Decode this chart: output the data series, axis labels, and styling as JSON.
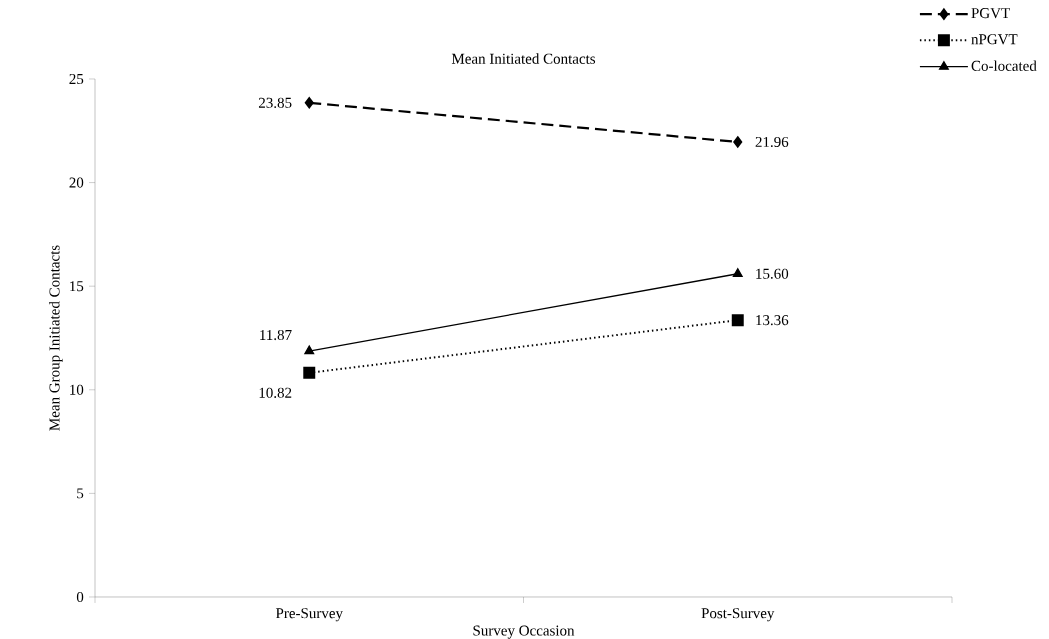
{
  "chart_data": {
    "type": "line",
    "title": "Mean Initiated Contacts",
    "xlabel": "Survey Occasion",
    "ylabel": "Mean Group Initiated Contacts",
    "categories": [
      "Pre-Survey",
      "Post-Survey"
    ],
    "series": [
      {
        "name": "PGVT",
        "color": "#000000",
        "values": [
          23.85,
          21.96
        ],
        "value_labels": [
          "23.85",
          "21.96"
        ],
        "line_style": "dashed",
        "marker": "diamond"
      },
      {
        "name": "nPGVT",
        "color": "#000000",
        "values": [
          10.82,
          13.36
        ],
        "value_labels": [
          "10.82",
          "13.36"
        ],
        "line_style": "dotted",
        "marker": "square"
      },
      {
        "name": "Co-located",
        "color": "#000000",
        "values": [
          11.87,
          15.6
        ],
        "value_labels": [
          "11.87",
          "15.60"
        ],
        "line_style": "solid",
        "marker": "triangle"
      }
    ],
    "ylim": [
      0,
      25
    ],
    "yticks": [
      0,
      5,
      10,
      15,
      20,
      25
    ],
    "legend": "top right",
    "grid": false
  }
}
